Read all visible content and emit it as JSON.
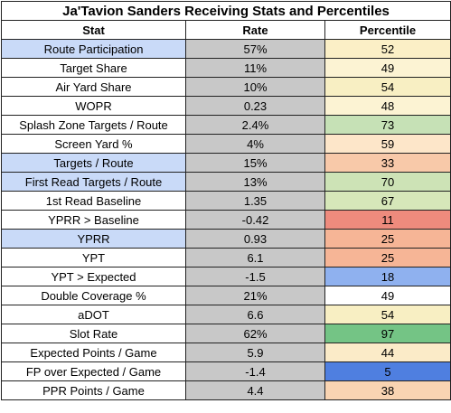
{
  "title": "Ja'Tavion Sanders Receiving Stats and Percentiles",
  "headers": {
    "stat": "Stat",
    "rate": "Rate",
    "percentile": "Percentile"
  },
  "rows": [
    {
      "stat": "Route Participation",
      "rate": "57%",
      "percentile": "52",
      "highlight": true,
      "pct_color": "#fbefc6"
    },
    {
      "stat": "Target Share",
      "rate": "11%",
      "percentile": "49",
      "highlight": false,
      "pct_color": "#fcf3d3"
    },
    {
      "stat": "Air Yard Share",
      "rate": "10%",
      "percentile": "54",
      "highlight": false,
      "pct_color": "#f8efc3"
    },
    {
      "stat": "WOPR",
      "rate": "0.23",
      "percentile": "48",
      "highlight": false,
      "pct_color": "#fcf3d3"
    },
    {
      "stat": "Splash Zone Targets / Route",
      "rate": "2.4%",
      "percentile": "73",
      "highlight": false,
      "pct_color": "#c6e1b6"
    },
    {
      "stat": "Screen Yard %",
      "rate": "4%",
      "percentile": "59",
      "highlight": false,
      "pct_color": "#fde6c9"
    },
    {
      "stat": "Targets / Route",
      "rate": "15%",
      "percentile": "33",
      "highlight": true,
      "pct_color": "#f8c9a9"
    },
    {
      "stat": "First Read Targets / Route",
      "rate": "13%",
      "percentile": "70",
      "highlight": true,
      "pct_color": "#cde3b6"
    },
    {
      "stat": "1st Read Baseline",
      "rate": "1.35",
      "percentile": "67",
      "highlight": false,
      "pct_color": "#d6e7b9"
    },
    {
      "stat": "YPRR > Baseline",
      "rate": "-0.42",
      "percentile": "11",
      "highlight": false,
      "pct_color": "#ee8b7d"
    },
    {
      "stat": "YPRR",
      "rate": "0.93",
      "percentile": "25",
      "highlight": true,
      "pct_color": "#f6b596"
    },
    {
      "stat": "YPT",
      "rate": "6.1",
      "percentile": "25",
      "highlight": false,
      "pct_color": "#f6b596"
    },
    {
      "stat": "YPT > Expected",
      "rate": "-1.5",
      "percentile": "18",
      "highlight": false,
      "pct_color": "#8fb1ef"
    },
    {
      "stat": "Double Coverage %",
      "rate": "21%",
      "percentile": "49",
      "highlight": false,
      "pct_color": "#ffffff"
    },
    {
      "stat": "aDOT",
      "rate": "6.6",
      "percentile": "54",
      "highlight": false,
      "pct_color": "#f8efc3"
    },
    {
      "stat": "Slot Rate",
      "rate": "62%",
      "percentile": "97",
      "highlight": false,
      "pct_color": "#74c485"
    },
    {
      "stat": "Expected Points / Game",
      "rate": "5.9",
      "percentile": "44",
      "highlight": false,
      "pct_color": "#fbebc8",
      "section_break": true
    },
    {
      "stat": "FP over Expected / Game",
      "rate": "-1.4",
      "percentile": "5",
      "highlight": false,
      "pct_color": "#4f7fe0"
    },
    {
      "stat": "PPR Points / Game",
      "rate": "4.4",
      "percentile": "38",
      "highlight": false,
      "pct_color": "#f9d4b2"
    }
  ],
  "colors": {
    "highlight": "#c9daf8",
    "rate_bg": "#c8c8c8"
  }
}
